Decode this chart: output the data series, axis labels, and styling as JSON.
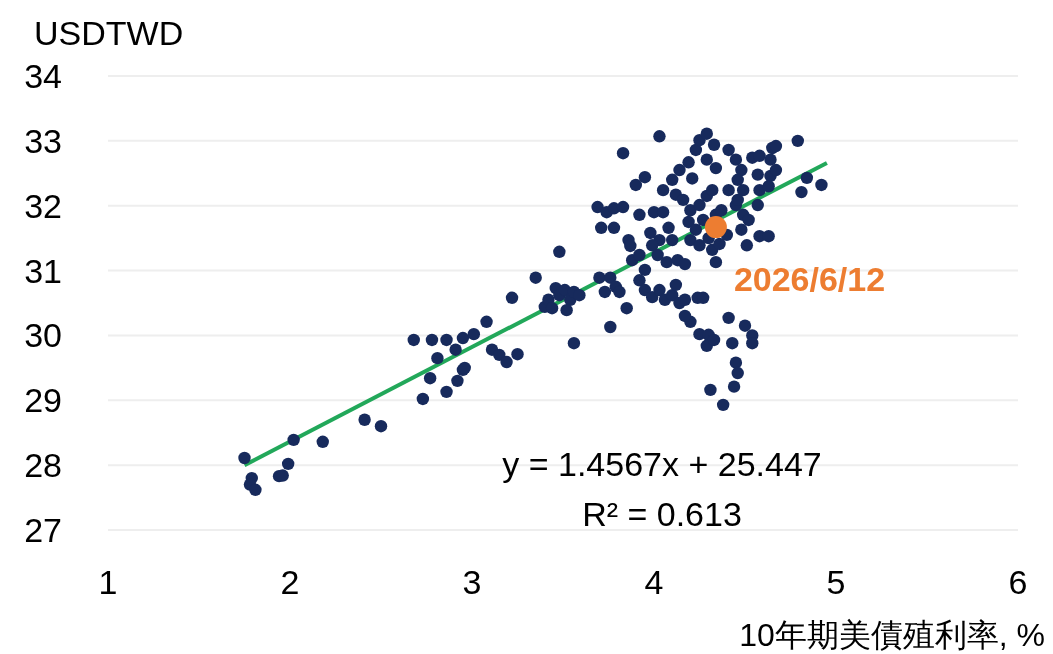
{
  "chart_data": {
    "type": "scatter",
    "ylabel": "USDTWD",
    "xlabel": "10年期美債殖利率, %",
    "xlim": [
      1,
      6
    ],
    "ylim": [
      27,
      34
    ],
    "xticks": [
      1,
      2,
      3,
      4,
      5,
      6
    ],
    "yticks": [
      27,
      28,
      29,
      30,
      31,
      32,
      33,
      34
    ],
    "grid": "y",
    "series": [
      {
        "color": "#172a5c",
        "marker": "circle",
        "x": [
          1.75,
          1.79,
          1.78,
          1.81,
          1.94,
          1.96,
          1.99,
          2.02,
          2.18,
          2.41,
          2.5,
          2.68,
          2.73,
          2.77,
          2.81,
          2.78,
          2.86,
          2.86,
          2.92,
          2.95,
          2.96,
          2.91,
          2.95,
          3.01,
          3.08,
          3.11,
          3.15,
          3.19,
          3.25,
          3.22,
          3.35,
          3.4,
          3.42,
          3.44,
          3.46,
          3.48,
          3.51,
          3.54,
          3.52,
          3.56,
          3.48,
          3.56,
          3.59,
          3.76,
          3.7,
          3.76,
          3.73,
          3.79,
          3.81,
          3.69,
          3.74,
          3.78,
          3.83,
          3.71,
          3.78,
          3.83,
          3.86,
          3.87,
          3.88,
          3.92,
          3.95,
          3.92,
          3.95,
          3.85,
          3.9,
          3.95,
          3.92,
          4.0,
          4.05,
          4.03,
          3.98,
          4.03,
          4.08,
          4.1,
          3.99,
          4.02,
          4.07,
          4.13,
          4.17,
          3.99,
          4.03,
          4.06,
          4.1,
          4.12,
          4.14,
          4.17,
          4.2,
          4.17,
          4.24,
          4.27,
          4.25,
          4.3,
          4.29,
          4.33,
          4.31,
          4.38,
          4.41,
          4.43,
          4.45,
          4.46,
          4.44,
          4.5,
          4.54,
          4.54,
          4.05,
          4.1,
          4.14,
          4.19,
          4.21,
          4.23,
          4.25,
          4.29,
          4.33,
          4.29,
          4.34,
          4.12,
          4.16,
          4.2,
          4.25,
          4.29,
          4.32,
          4.19,
          4.23,
          4.27,
          4.34,
          4.37,
          4.2,
          4.25,
          4.3,
          4.32,
          4.36,
          4.4,
          4.34,
          4.41,
          4.45,
          4.48,
          4.46,
          4.49,
          4.45,
          4.49,
          4.48,
          4.51,
          4.54,
          4.58,
          4.64,
          4.57,
          4.64,
          4.67,
          4.58,
          4.63,
          4.65,
          4.67,
          4.79,
          4.58,
          4.63,
          4.84,
          4.81,
          4.92,
          4.57,
          4.52,
          4.46,
          4.41
        ],
        "values": [
          28.11,
          27.8,
          27.7,
          27.62,
          27.83,
          27.84,
          28.02,
          28.39,
          28.36,
          28.7,
          28.6,
          29.93,
          29.02,
          29.34,
          29.65,
          29.93,
          29.93,
          29.13,
          29.3,
          29.47,
          29.5,
          29.78,
          29.96,
          30.02,
          30.21,
          29.78,
          29.7,
          29.59,
          29.71,
          30.58,
          30.89,
          30.44,
          30.55,
          30.42,
          30.73,
          30.62,
          30.7,
          30.55,
          30.39,
          30.67,
          31.29,
          29.88,
          30.62,
          30.13,
          30.89,
          30.89,
          30.67,
          30.75,
          30.67,
          31.98,
          31.9,
          31.96,
          31.98,
          31.66,
          31.66,
          32.81,
          31.47,
          31.38,
          31.16,
          31.24,
          31.01,
          30.85,
          30.7,
          30.42,
          32.32,
          32.44,
          31.86,
          31.9,
          31.9,
          33.07,
          31.58,
          31.47,
          31.66,
          31.47,
          31.39,
          31.24,
          31.13,
          31.16,
          31.1,
          30.59,
          30.7,
          30.55,
          30.62,
          30.78,
          30.5,
          30.55,
          30.21,
          30.3,
          30.58,
          30.58,
          30.02,
          30.01,
          29.84,
          29.93,
          29.16,
          28.93,
          30.27,
          29.88,
          29.58,
          29.42,
          29.21,
          30.15,
          30.0,
          29.88,
          32.24,
          32.4,
          32.55,
          32.67,
          32.42,
          32.86,
          33.01,
          33.11,
          32.94,
          32.71,
          32.58,
          32.17,
          32.09,
          31.93,
          32.01,
          32.15,
          32.24,
          31.75,
          31.63,
          31.78,
          31.86,
          31.93,
          31.47,
          31.39,
          31.5,
          31.32,
          31.41,
          31.55,
          31.13,
          32.86,
          32.71,
          32.55,
          32.4,
          32.24,
          32.01,
          31.86,
          31.63,
          31.39,
          32.74,
          32.77,
          32.71,
          32.48,
          32.46,
          32.55,
          32.24,
          32.3,
          32.89,
          32.92,
          33.0,
          31.53,
          31.53,
          32.43,
          32.21,
          32.32,
          32.01,
          31.78,
          32.09,
          32.24
        ]
      },
      {
        "color": "#ed7d31",
        "marker": "circle",
        "x": [
          4.34
        ],
        "values": [
          31.67
        ]
      },
      {
        "type": "line",
        "color": "#22a85a",
        "x": [
          1.75,
          4.95
        ],
        "values": [
          28.0,
          32.66
        ]
      }
    ],
    "annotations": [
      {
        "text": "2026/6/12",
        "x": 4.34,
        "y": 31.67
      },
      "y = 1.4567x + 25.447",
      "R² = 0.613"
    ]
  }
}
